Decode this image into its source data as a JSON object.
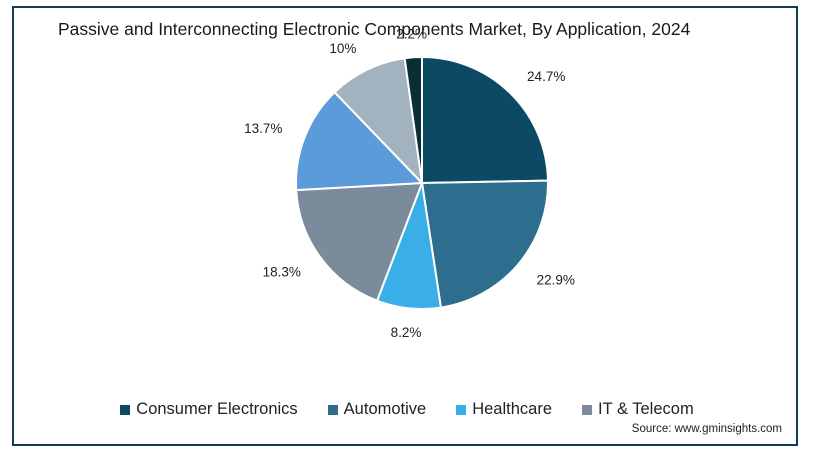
{
  "chart_data": {
    "type": "pie",
    "title": "Passive and Interconnecting Electronic Components Market, By Application, 2024",
    "categories": [
      "Consumer Electronics",
      "Automotive",
      "Healthcare",
      "IT & Telecom",
      "",
      "",
      ""
    ],
    "values": [
      24.7,
      22.9,
      8.2,
      18.3,
      13.7,
      10,
      2.2
    ],
    "labels": [
      "24.7%",
      "22.9%",
      "8.2%",
      "18.3%",
      "13.7%",
      "10%",
      "2.2%"
    ],
    "colors": [
      "#0c4a63",
      "#2d6e8e",
      "#3aaee6",
      "#7b8b9b",
      "#5b9bd9",
      "#a3b2bf",
      "#0b2e36"
    ],
    "legend_position": "bottom",
    "legend": [
      {
        "label": "Consumer Electronics",
        "color": "#0c4a63"
      },
      {
        "label": "Automotive",
        "color": "#2d6e8e"
      },
      {
        "label": "Healthcare",
        "color": "#3aaee6"
      },
      {
        "label": "IT & Telecom",
        "color": "#7b8b9b"
      }
    ]
  },
  "source": "Source: www.gminsights.com"
}
